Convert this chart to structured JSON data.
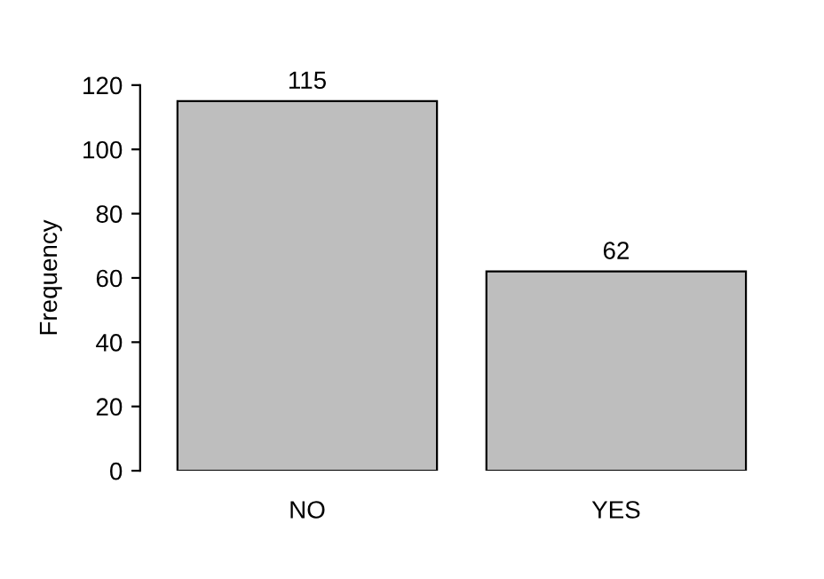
{
  "chart_data": {
    "type": "bar",
    "ylabel": "Frequency",
    "categories": [
      "NO",
      "YES"
    ],
    "values": [
      115,
      62
    ],
    "color": "#bebebe",
    "ylim": [
      0,
      120
    ],
    "yticks": [
      0,
      20,
      40,
      60,
      80,
      100,
      120
    ],
    "data_labels": true
  }
}
